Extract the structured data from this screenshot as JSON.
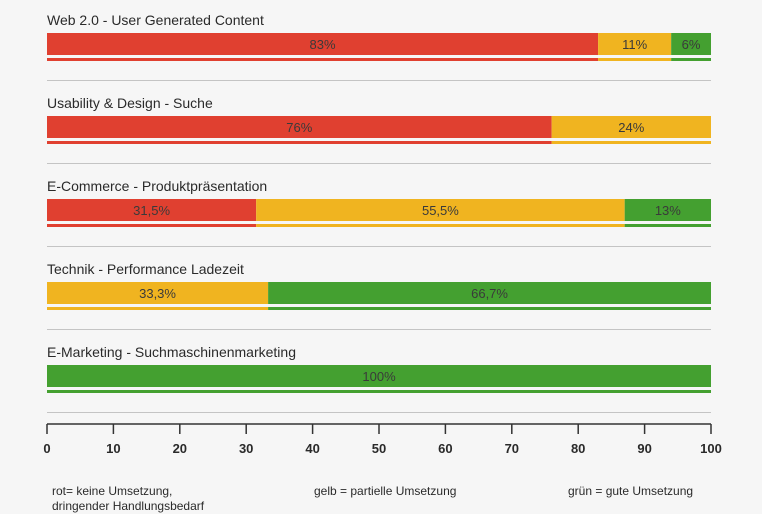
{
  "chart_data": {
    "type": "bar",
    "orientation": "horizontal-stacked",
    "categories": [
      "Web 2.0 - User Generated Content",
      "Usability & Design - Suche",
      "E-Commerce - Produktpräsentation",
      "Technik - Performance Ladezeit",
      "E-Marketing - Suchmaschinenmarketing"
    ],
    "series": [
      {
        "key": "rot",
        "values": [
          83,
          76,
          31.5,
          0,
          0
        ],
        "labels": [
          "83%",
          "76%",
          "31,5%",
          "",
          ""
        ]
      },
      {
        "key": "gelb",
        "values": [
          11,
          24,
          55.5,
          33.3,
          0
        ],
        "labels": [
          "11%",
          "24%",
          "55,5%",
          "33,3%",
          ""
        ]
      },
      {
        "key": "gruen",
        "values": [
          6,
          0,
          13,
          66.7,
          100
        ],
        "labels": [
          "6%",
          "",
          "13%",
          "66,7%",
          "100%"
        ]
      }
    ],
    "colors": {
      "rot": "#e04030",
      "gelb": "#f0b420",
      "gruen": "#44a030"
    },
    "xlim": [
      0,
      100
    ],
    "xticks": [
      0,
      10,
      20,
      30,
      40,
      50,
      60,
      70,
      80,
      90,
      100
    ],
    "legend": {
      "rot": [
        "rot= keine Umsetzung,",
        "dringender Handlungsbedarf"
      ],
      "gelb": "gelb = partielle Umsetzung",
      "gruen": "grün = gute Umsetzung"
    }
  }
}
